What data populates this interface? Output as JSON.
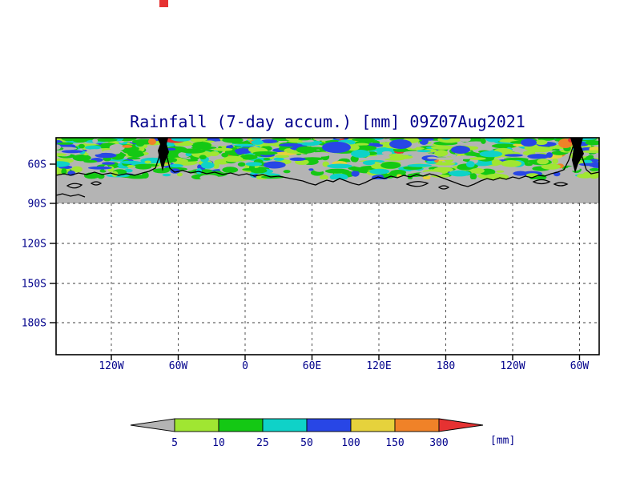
{
  "title": "Rainfall (7-day accum.) [mm] 09Z07Aug2021",
  "colors": {
    "ink": "#00008b",
    "land_outline": "#000000",
    "below_threshold_gray": "#b4b4b4",
    "frame": "#000000",
    "artifact_red": "#e63232"
  },
  "axes": {
    "y_tick_labels": [
      "60S",
      "90S",
      "120S",
      "150S",
      "180S"
    ],
    "x_tick_labels": [
      "120W",
      "60W",
      "0",
      "60E",
      "120E",
      "180",
      "120W",
      "60W"
    ]
  },
  "legend": {
    "labels": [
      "5",
      "10",
      "25",
      "50",
      "100",
      "150",
      "300"
    ],
    "unit": "[mm]",
    "colors": [
      "#b4b4b4",
      "#a0e632",
      "#14c814",
      "#0fd2c8",
      "#2846e6",
      "#e6d23c",
      "#f08228",
      "#e63232"
    ]
  },
  "chart_data": {
    "type": "heatmap",
    "title": "Rainfall (7-day accum.) [mm] 09Z07Aug2021",
    "variable": "Rainfall, 7-day accumulation",
    "units": "mm",
    "valid_time": "09Z07Aug2021",
    "colorbar": {
      "levels": [
        5,
        10,
        25,
        50,
        100,
        150,
        300
      ],
      "colors": [
        "#b4b4b4",
        "#a0e632",
        "#14c814",
        "#0fd2c8",
        "#2846e6",
        "#e6d23c",
        "#f08228",
        "#e63232"
      ],
      "unit_label": "[mm]"
    },
    "x_axis": {
      "tick_labels": [
        "120W",
        "60W",
        "0",
        "60E",
        "120E",
        "180",
        "120W",
        "60W"
      ]
    },
    "y_axis": {
      "tick_labels": [
        "60S",
        "90S",
        "120S",
        "150S",
        "180S"
      ]
    },
    "grid": "dotted",
    "map_region": "Southern Ocean / Antarctica",
    "description": "Speckled band of 5-300+ mm 7-day accumulated rainfall (greens, cyans, blues with isolated yellow/orange/red maxima) across the top of the map north of the Antarctic coastline; gray (< 5 mm) over the Antarctic continent down to the 90S gridline; empty white below with dotted lat/lon gridlines. Antarctic Peninsula appears as black filled contours near 60W (shown twice due to longitude wrap)."
  }
}
